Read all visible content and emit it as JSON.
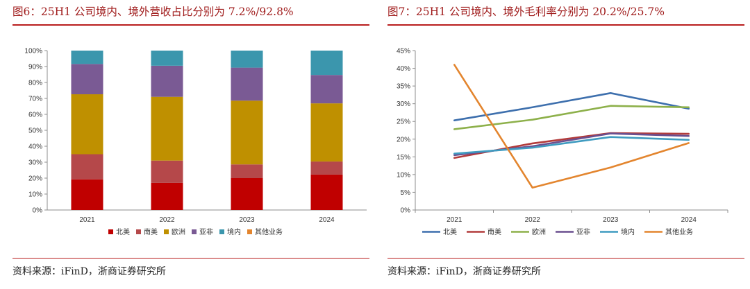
{
  "left": {
    "title": "图6：25H1 公司境内、境外营收占比分别为 7.2%/92.8%",
    "source": "资料来源：iFinD，浙商证券研究所"
  },
  "right": {
    "title": "图7：25H1 公司境内、境外毛利率分别为 20.2%/25.7%",
    "source": "资料来源：iFinD，浙商证券研究所"
  },
  "chart_data": [
    {
      "type": "bar",
      "stacked": true,
      "categories": [
        "2021",
        "2022",
        "2023",
        "2024"
      ],
      "series": [
        {
          "name": "北美",
          "color": "#c00000",
          "values": [
            19.2,
            17.0,
            20.0,
            22.2
          ]
        },
        {
          "name": "南美",
          "color": "#b5484a",
          "values": [
            15.8,
            14.0,
            8.6,
            8.2
          ]
        },
        {
          "name": "欧洲",
          "color": "#bf9000",
          "values": [
            37.6,
            40.0,
            40.0,
            36.5
          ]
        },
        {
          "name": "亚非",
          "color": "#7a5a94",
          "values": [
            19.0,
            19.5,
            20.7,
            17.8
          ]
        },
        {
          "name": "境内",
          "color": "#3b96ad",
          "values": [
            8.4,
            9.5,
            10.7,
            15.3
          ]
        }
      ],
      "ylim": [
        0,
        100
      ],
      "yticks": [
        "0%",
        "10%",
        "20%",
        "30%",
        "40%",
        "50%",
        "60%",
        "70%",
        "80%",
        "90%",
        "100%"
      ],
      "legend_extra": {
        "name": "其他业务",
        "color": "#e3852e"
      },
      "legend_position": "bottom",
      "xlabel": "",
      "ylabel": ""
    },
    {
      "type": "line",
      "categories": [
        "2021",
        "2022",
        "2023",
        "2024"
      ],
      "series": [
        {
          "name": "北美",
          "color": "#3d6fad",
          "values": [
            25.3,
            29.0,
            33.0,
            28.6
          ]
        },
        {
          "name": "南美",
          "color": "#b23b3b",
          "values": [
            14.7,
            18.8,
            21.7,
            21.5
          ]
        },
        {
          "name": "欧洲",
          "color": "#8db04a",
          "values": [
            22.8,
            25.5,
            29.4,
            29.0
          ]
        },
        {
          "name": "亚非",
          "color": "#6a4f8f",
          "values": [
            15.5,
            18.0,
            21.6,
            20.9
          ]
        },
        {
          "name": "境内",
          "color": "#3f9bc0",
          "values": [
            15.9,
            17.6,
            20.6,
            19.8
          ]
        },
        {
          "name": "其他业务",
          "color": "#e3852e",
          "values": [
            41.0,
            6.3,
            12.0,
            18.9
          ]
        }
      ],
      "ylim": [
        0,
        45
      ],
      "yticks": [
        "0%",
        "5%",
        "10%",
        "15%",
        "20%",
        "25%",
        "30%",
        "35%",
        "40%",
        "45%"
      ],
      "legend_position": "bottom",
      "xlabel": "",
      "ylabel": ""
    }
  ]
}
